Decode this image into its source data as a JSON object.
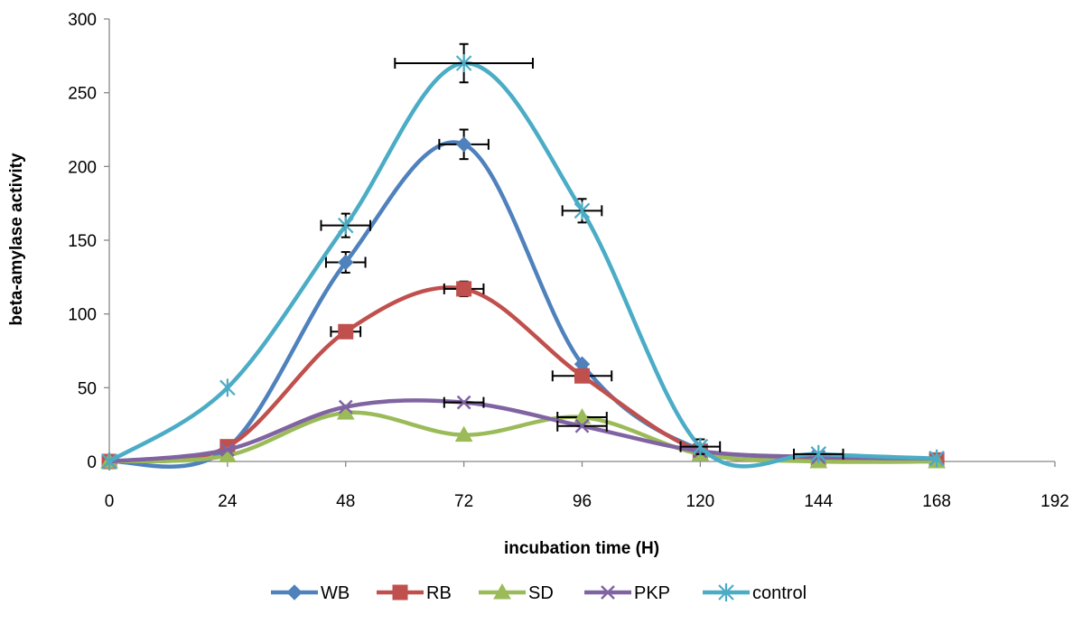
{
  "chart_data": {
    "type": "line",
    "smooth": true,
    "xlabel": "incubation time (H)",
    "ylabel": "beta-amylase activity",
    "xlim": [
      0,
      192
    ],
    "ylim": [
      0,
      300
    ],
    "x_ticks": [
      0,
      24,
      48,
      72,
      96,
      120,
      144,
      168,
      192
    ],
    "y_ticks": [
      0,
      50,
      100,
      150,
      200,
      250,
      300
    ],
    "grid": false,
    "legend": "bottom",
    "x": [
      0,
      24,
      48,
      72,
      96,
      120,
      144,
      168
    ],
    "series": [
      {
        "name": "WB",
        "color": "#4F81BD",
        "marker": "diamond",
        "values": [
          0,
          9,
          135,
          215,
          66,
          8,
          2,
          1
        ],
        "errors": [
          [
            0,
            0
          ],
          [
            0,
            0
          ],
          [
            7,
            4
          ],
          [
            10,
            5
          ],
          [
            0,
            0
          ],
          [
            0,
            0
          ],
          [
            0,
            0
          ],
          [
            0,
            0
          ]
        ]
      },
      {
        "name": "RB",
        "color": "#C0504D",
        "marker": "square",
        "values": [
          0,
          10,
          88,
          117,
          58,
          7,
          1,
          1
        ],
        "errors": [
          [
            0,
            0
          ],
          [
            0,
            0
          ],
          [
            0,
            3
          ],
          [
            5,
            4
          ],
          [
            0,
            6
          ],
          [
            0,
            0
          ],
          [
            0,
            0
          ],
          [
            0,
            0
          ]
        ]
      },
      {
        "name": "SD",
        "color": "#9BBB59",
        "marker": "triangle",
        "values": [
          0,
          4,
          33,
          18,
          30,
          5,
          0,
          0
        ],
        "errors": [
          [
            0,
            0
          ],
          [
            0,
            0
          ],
          [
            0,
            0
          ],
          [
            0,
            0
          ],
          [
            0,
            5
          ],
          [
            0,
            0
          ],
          [
            0,
            0
          ],
          [
            0,
            0
          ]
        ]
      },
      {
        "name": "PKP",
        "color": "#8064A2",
        "marker": "x",
        "values": [
          0,
          8,
          37,
          40,
          24,
          7,
          3,
          2
        ],
        "errors": [
          [
            0,
            0
          ],
          [
            0,
            0
          ],
          [
            0,
            0
          ],
          [
            0,
            4
          ],
          [
            0,
            5
          ],
          [
            0,
            0
          ],
          [
            0,
            0
          ],
          [
            0,
            0
          ]
        ]
      },
      {
        "name": "control",
        "color": "#4BACC6",
        "marker": "star",
        "values": [
          0,
          50,
          160,
          270,
          170,
          10,
          5,
          2
        ],
        "errors": [
          [
            0,
            0
          ],
          [
            0,
            0
          ],
          [
            8,
            5
          ],
          [
            13,
            14
          ],
          [
            8,
            4
          ],
          [
            5,
            4
          ],
          [
            0,
            5
          ],
          [
            0,
            0
          ]
        ]
      }
    ]
  }
}
